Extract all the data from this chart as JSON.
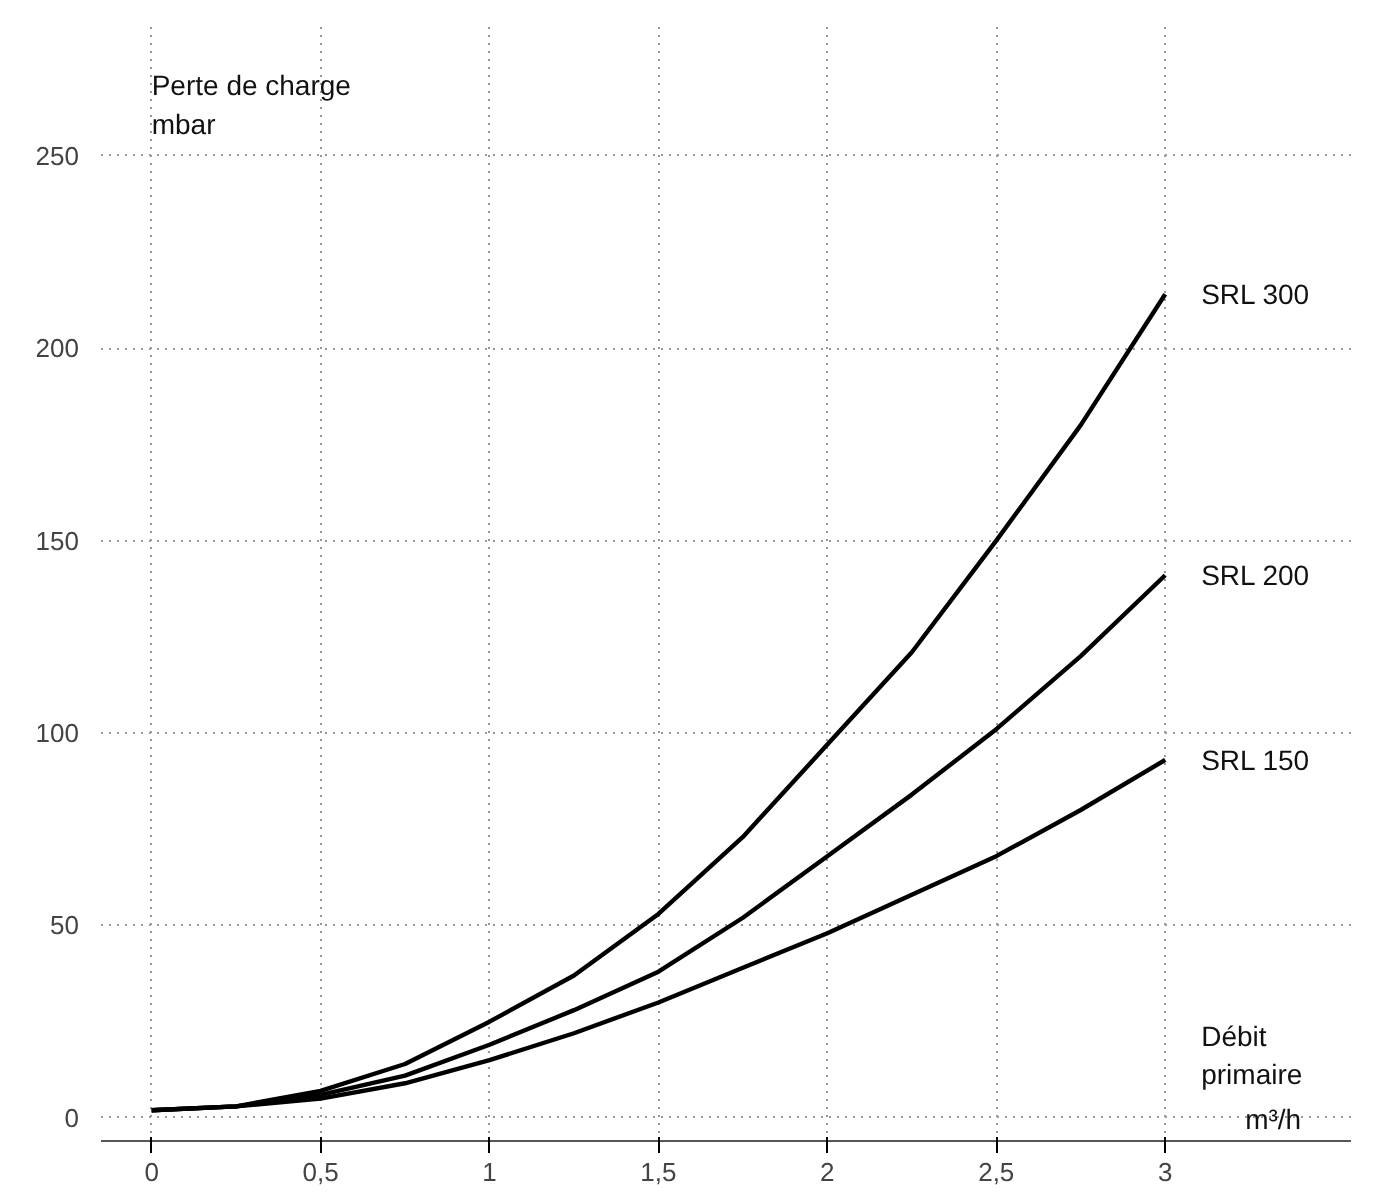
{
  "chart_data": {
    "type": "line",
    "ylabel": "Perte de charge\nmbar",
    "xlabel": "Débit primaire",
    "annotations": [
      "m³/h"
    ],
    "x": [
      0,
      0.25,
      0.5,
      0.75,
      1,
      1.25,
      1.5,
      1.75,
      2,
      2.25,
      2.5,
      2.75,
      3
    ],
    "series": [
      {
        "name": "SRL 300",
        "color": "#000000",
        "values": [
          2,
          3,
          7,
          14,
          25,
          37,
          53,
          73,
          97,
          121,
          150,
          180,
          214
        ]
      },
      {
        "name": "SRL 200",
        "color": "#000000",
        "values": [
          2,
          3,
          6,
          11,
          19,
          28,
          38,
          52,
          68,
          84,
          101,
          120,
          141
        ]
      },
      {
        "name": "SRL 150",
        "color": "#000000",
        "values": [
          2,
          3,
          5,
          9,
          15,
          22,
          30,
          39,
          48,
          58,
          68,
          80,
          93
        ]
      }
    ],
    "xlim": [
      -0.15,
      3.55
    ],
    "ylim": [
      -6,
      285
    ],
    "xticks": [
      0,
      {
        "value": 0.5,
        "label": "0,5"
      },
      1,
      {
        "value": 1.5,
        "label": "1,5"
      },
      2,
      {
        "value": 2.5,
        "label": "2,5"
      },
      3
    ],
    "yticks": [
      0,
      50,
      100,
      150,
      200,
      250
    ],
    "grid": true,
    "marker": "none",
    "line_style": "solid",
    "legend": false
  }
}
